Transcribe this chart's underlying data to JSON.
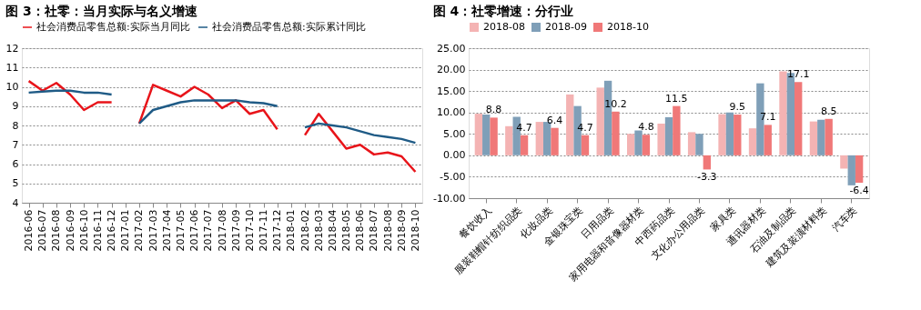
{
  "chart_data": [
    {
      "type": "line",
      "title": "图 3：社零：当月实际与名义增速",
      "categories": [
        "2016-06",
        "2016-07",
        "2016-08",
        "2016-09",
        "2016-10",
        "2016-11",
        "2016-12",
        "2017-01",
        "2017-02",
        "2017-03",
        "2017-04",
        "2017-05",
        "2017-06",
        "2017-07",
        "2017-08",
        "2017-09",
        "2017-10",
        "2017-11",
        "2017-12",
        "2018-01",
        "2018-02",
        "2018-03",
        "2018-04",
        "2018-05",
        "2018-06",
        "2018-07",
        "2018-08",
        "2018-09",
        "2018-10"
      ],
      "series": [
        {
          "name": "社会消费品零售总额:实际当月同比",
          "color": "#e8141a",
          "values": [
            10.3,
            9.8,
            10.2,
            9.6,
            8.8,
            9.2,
            9.2,
            null,
            8.1,
            10.1,
            9.8,
            9.5,
            10.0,
            9.6,
            8.9,
            9.3,
            8.6,
            8.8,
            7.8,
            null,
            7.5,
            8.6,
            7.7,
            6.8,
            7.0,
            6.5,
            6.6,
            6.4,
            5.6
          ]
        },
        {
          "name": "社会消费品零售总额:实际累计同比",
          "color": "#1f5b86",
          "values": [
            9.7,
            9.75,
            9.8,
            9.8,
            9.7,
            9.7,
            9.6,
            null,
            8.1,
            8.8,
            9.0,
            9.2,
            9.3,
            9.3,
            9.3,
            9.3,
            9.2,
            9.15,
            9.0,
            null,
            7.9,
            8.1,
            8.0,
            7.9,
            7.7,
            7.5,
            7.4,
            7.3,
            7.1
          ]
        }
      ],
      "ylim": [
        4,
        12
      ],
      "yticks": [
        4,
        5,
        6,
        7,
        8,
        9,
        10,
        11,
        12
      ],
      "grid": "y",
      "legend": "top",
      "marker": "none",
      "line_style": "solid"
    },
    {
      "type": "bar",
      "title": "图 4：社零增速：分行业",
      "categories": [
        "餐饮收入",
        "服装鞋帽针纺织品类",
        "化妆品类",
        "金银珠宝类",
        "日用品类",
        "家用电器和音像器材类",
        "中西药品类",
        "文化办公用品类",
        "家具类",
        "通讯器材类",
        "石油及制品类",
        "建筑及装潢材料类",
        "汽车类"
      ],
      "series": [
        {
          "name": "2018-08",
          "color": "#f4b3b3",
          "values": [
            9.7,
            6.8,
            7.8,
            14.2,
            15.8,
            5.0,
            7.4,
            5.4,
            9.6,
            6.3,
            19.6,
            7.9,
            -3.1
          ]
        },
        {
          "name": "2018-09",
          "color": "#7f9fb8",
          "values": [
            9.5,
            9.0,
            7.8,
            11.5,
            17.4,
            5.8,
            8.9,
            5.0,
            10.0,
            16.8,
            19.2,
            8.3,
            -7.0
          ]
        },
        {
          "name": "2018-10",
          "color": "#f07878",
          "values": [
            8.8,
            4.7,
            6.4,
            4.7,
            10.2,
            4.8,
            11.5,
            -3.3,
            9.5,
            7.1,
            17.1,
            8.5,
            -6.4
          ],
          "value_labels": [
            "8.8",
            "4.7",
            "6.4",
            "4.7",
            "10.2",
            "4.8",
            "11.5",
            "-3.3",
            "9.5",
            "7.1",
            "17.1",
            "8.5",
            "-6.4"
          ]
        }
      ],
      "ylim": [
        -10,
        25
      ],
      "yticks": [
        {
          "value": -10,
          "label": "-10.00"
        },
        {
          "value": -5,
          "label": "-5.00"
        },
        {
          "value": 0,
          "label": "0.00"
        },
        {
          "value": 5,
          "label": "5.00"
        },
        {
          "value": 10,
          "label": "10.00"
        },
        {
          "value": 15,
          "label": "15.00"
        },
        {
          "value": 20,
          "label": "20.00"
        },
        {
          "value": 25,
          "label": "25.00"
        }
      ],
      "grid": "y",
      "legend": "top"
    }
  ]
}
